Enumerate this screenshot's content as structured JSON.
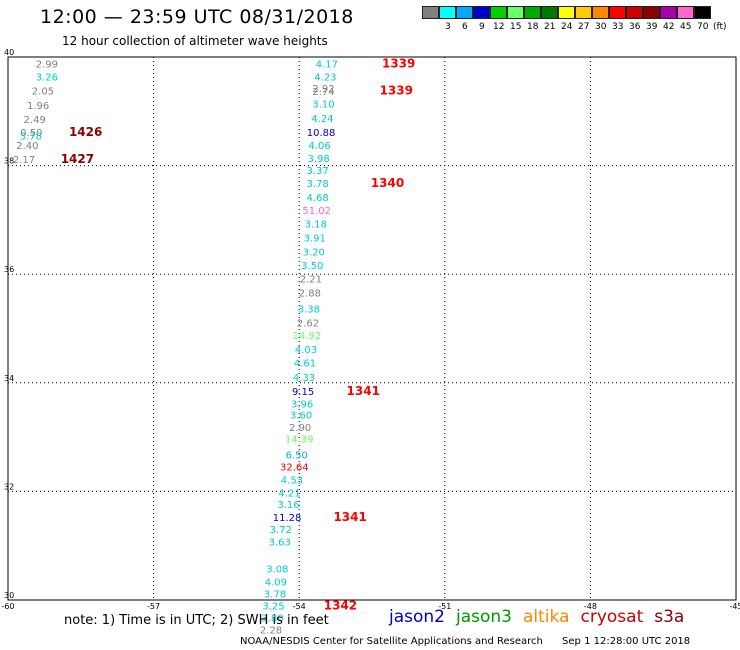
{
  "header": {
    "title": "12:00 — 23:59 UTC 08/31/2018",
    "subtitle": "12 hour collection of altimeter wave heights"
  },
  "legend": {
    "swatches": [
      {
        "color": "#808080",
        "label": ""
      },
      {
        "color": "#00ffff",
        "label": "3"
      },
      {
        "color": "#00aaff",
        "label": "6"
      },
      {
        "color": "#0000cc",
        "label": "9"
      },
      {
        "color": "#00d000",
        "label": "12"
      },
      {
        "color": "#66ff66",
        "label": "15"
      },
      {
        "color": "#00aa00",
        "label": "18"
      },
      {
        "color": "#007700",
        "label": "21"
      },
      {
        "color": "#ffff00",
        "label": "24"
      },
      {
        "color": "#ffcc00",
        "label": "27"
      },
      {
        "color": "#ff8800",
        "label": "30"
      },
      {
        "color": "#ff0000",
        "label": "33"
      },
      {
        "color": "#cc0000",
        "label": "36"
      },
      {
        "color": "#8b0000",
        "label": "39"
      },
      {
        "color": "#aa00aa",
        "label": "42"
      },
      {
        "color": "#ff66cc",
        "label": "45"
      },
      {
        "color": "#000000",
        "label": "70"
      }
    ],
    "unit": "(ft)"
  },
  "chart_data": {
    "type": "scatter",
    "title": "12:00 — 23:59 UTC 08/31/2018",
    "subtitle": "12 hour collection of altimeter wave heights",
    "xlim": [
      -60,
      -45
    ],
    "ylim": [
      30,
      40
    ],
    "xticks": [
      "-60",
      "-57",
      "-54",
      "-51",
      "-48",
      "-45"
    ],
    "yticks": [
      "30",
      "32",
      "34",
      "36",
      "38",
      "40"
    ],
    "grid": true,
    "points": [
      {
        "x": -59.2,
        "y": 39.88,
        "label": "2.99",
        "color": "#808080"
      },
      {
        "x": -59.2,
        "y": 39.64,
        "label": "3.26",
        "color": "#00cccc"
      },
      {
        "x": -59.28,
        "y": 39.38,
        "label": "2.05",
        "color": "#808080"
      },
      {
        "x": -59.38,
        "y": 39.12,
        "label": "1.96",
        "color": "#808080"
      },
      {
        "x": -59.45,
        "y": 38.86,
        "label": "2.49",
        "color": "#808080"
      },
      {
        "x": -59.52,
        "y": 38.62,
        "label": "0.50",
        "color": "#808080"
      },
      {
        "x": -59.53,
        "y": 38.55,
        "label": "3.78",
        "color": "#00cccc"
      },
      {
        "x": -59.6,
        "y": 38.38,
        "label": "2.40",
        "color": "#808080"
      },
      {
        "x": -59.67,
        "y": 38.12,
        "label": "2.17",
        "color": "#808080"
      },
      {
        "x": -53.43,
        "y": 39.88,
        "label": "4.17",
        "color": "#00cccc"
      },
      {
        "x": -53.46,
        "y": 39.64,
        "label": "4.23",
        "color": "#00cccc"
      },
      {
        "x": -53.5,
        "y": 39.43,
        "label": "2.92",
        "color": "#808080"
      },
      {
        "x": -53.5,
        "y": 39.37,
        "label": "2.74",
        "color": "#808080"
      },
      {
        "x": -53.5,
        "y": 39.14,
        "label": "3.10",
        "color": "#00cccc"
      },
      {
        "x": -53.52,
        "y": 38.88,
        "label": "4.24",
        "color": "#00cccc"
      },
      {
        "x": -53.55,
        "y": 38.62,
        "label": "10.88",
        "color": "#0000cc"
      },
      {
        "x": -53.58,
        "y": 38.38,
        "label": "4.06",
        "color": "#00cccc"
      },
      {
        "x": -53.6,
        "y": 38.14,
        "label": "3.98",
        "color": "#00cccc"
      },
      {
        "x": -53.62,
        "y": 37.92,
        "label": "3.37",
        "color": "#00cccc"
      },
      {
        "x": -53.62,
        "y": 37.68,
        "label": "3.78",
        "color": "#00cccc"
      },
      {
        "x": -53.62,
        "y": 37.42,
        "label": "4.68",
        "color": "#00cccc"
      },
      {
        "x": -53.64,
        "y": 37.18,
        "label": "51.02",
        "color": "#ff66cc"
      },
      {
        "x": -53.66,
        "y": 36.93,
        "label": "3.18",
        "color": "#00cccc"
      },
      {
        "x": -53.68,
        "y": 36.68,
        "label": "3.91",
        "color": "#00cccc"
      },
      {
        "x": -53.7,
        "y": 36.42,
        "label": "3.20",
        "color": "#00cccc"
      },
      {
        "x": -53.73,
        "y": 36.17,
        "label": "3.50",
        "color": "#00cccc"
      },
      {
        "x": -53.76,
        "y": 35.92,
        "label": "2.21",
        "color": "#808080"
      },
      {
        "x": -53.78,
        "y": 35.66,
        "label": "2.88",
        "color": "#808080"
      },
      {
        "x": -53.8,
        "y": 35.37,
        "label": "3.38",
        "color": "#00cccc"
      },
      {
        "x": -53.82,
        "y": 35.11,
        "label": "2.62",
        "color": "#808080"
      },
      {
        "x": -53.84,
        "y": 34.88,
        "label": "14.92",
        "color": "#66ff66"
      },
      {
        "x": -53.86,
        "y": 34.62,
        "label": "4.03",
        "color": "#00cccc"
      },
      {
        "x": -53.88,
        "y": 34.37,
        "label": "4.61",
        "color": "#00cccc"
      },
      {
        "x": -53.9,
        "y": 34.11,
        "label": "4.33",
        "color": "#00cccc"
      },
      {
        "x": -53.92,
        "y": 33.85,
        "label": "9.15",
        "color": "#0000cc"
      },
      {
        "x": -53.94,
        "y": 33.62,
        "label": "3.96",
        "color": "#00cccc"
      },
      {
        "x": -53.96,
        "y": 33.42,
        "label": "3.60",
        "color": "#00cccc"
      },
      {
        "x": -53.98,
        "y": 33.19,
        "label": "2.90",
        "color": "#808080"
      },
      {
        "x": -54.0,
        "y": 32.97,
        "label": "14.39",
        "color": "#66ff66"
      },
      {
        "x": -54.05,
        "y": 32.68,
        "label": "6.50",
        "color": "#00aaff"
      },
      {
        "x": -54.1,
        "y": 32.46,
        "label": "32.64",
        "color": "#ff0000"
      },
      {
        "x": -54.15,
        "y": 32.22,
        "label": "4.53",
        "color": "#00cccc"
      },
      {
        "x": -54.2,
        "y": 31.98,
        "label": "4.21",
        "color": "#00cccc"
      },
      {
        "x": -54.22,
        "y": 31.77,
        "label": "3.16",
        "color": "#00cccc"
      },
      {
        "x": -54.25,
        "y": 31.53,
        "label": "11.28",
        "color": "#0000cc"
      },
      {
        "x": -54.38,
        "y": 31.31,
        "label": "3.72",
        "color": "#00cccc"
      },
      {
        "x": -54.4,
        "y": 31.08,
        "label": "3.63",
        "color": "#00cccc"
      },
      {
        "x": -54.45,
        "y": 30.58,
        "label": "3.08",
        "color": "#00cccc"
      },
      {
        "x": -54.48,
        "y": 30.34,
        "label": "4.09",
        "color": "#00cccc"
      },
      {
        "x": -54.5,
        "y": 30.12,
        "label": "3.78",
        "color": "#00cccc"
      },
      {
        "x": -54.53,
        "y": 29.9,
        "label": "3.25",
        "color": "#00cccc"
      },
      {
        "x": -54.55,
        "y": 29.68,
        "label": "3.80",
        "color": "#00cccc"
      },
      {
        "x": -54.58,
        "y": 29.46,
        "label": "2.28",
        "color": "#808080"
      }
    ],
    "time_labels": [
      {
        "x": -58.4,
        "y": 38.62,
        "label": "1426",
        "color": "#8b0000"
      },
      {
        "x": -58.57,
        "y": 38.12,
        "label": "1427",
        "color": "#8b0000"
      },
      {
        "x": -51.95,
        "y": 39.88,
        "label": "1339",
        "color": "#ff0000"
      },
      {
        "x": -52.0,
        "y": 39.38,
        "label": "1339",
        "color": "#ff0000"
      },
      {
        "x": -52.18,
        "y": 37.68,
        "label": "1340",
        "color": "#ff0000"
      },
      {
        "x": -52.68,
        "y": 33.85,
        "label": "1341",
        "color": "#ff0000"
      },
      {
        "x": -52.95,
        "y": 31.53,
        "label": "1341",
        "color": "#ff0000"
      },
      {
        "x": -53.15,
        "y": 29.9,
        "label": "1342",
        "color": "#ff0000"
      }
    ]
  },
  "notes": {
    "note": "note:  1) Time is in UTC;  2) SWH is in feet",
    "satellites": [
      {
        "name": "jason2",
        "color": "#0000cc"
      },
      {
        "name": "jason3",
        "color": "#009900"
      },
      {
        "name": "altika",
        "color": "#ff8800"
      },
      {
        "name": "cryosat",
        "color": "#cc0000"
      },
      {
        "name": "s3a",
        "color": "#8b0000"
      }
    ]
  },
  "footer": {
    "agency": "NOAA/NESDIS Center for Satellite Applications and Research",
    "timestamp": "Sep  1 12:28:00 UTC 2018"
  }
}
